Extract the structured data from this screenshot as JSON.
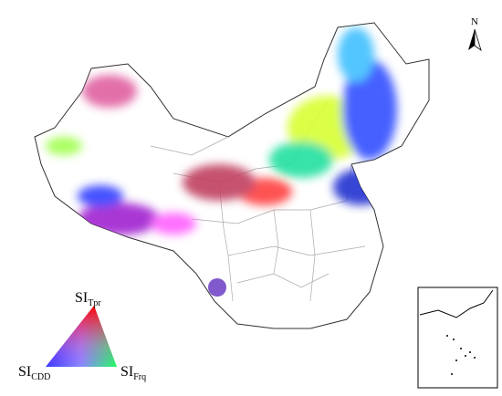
{
  "north_arrow": {
    "label": "N"
  },
  "legend": {
    "labels": [
      {
        "base": "SI",
        "sub": "Tpr"
      },
      {
        "base": "SI",
        "sub": "CDD"
      },
      {
        "base": "SI",
        "sub": "Frq"
      }
    ]
  }
}
